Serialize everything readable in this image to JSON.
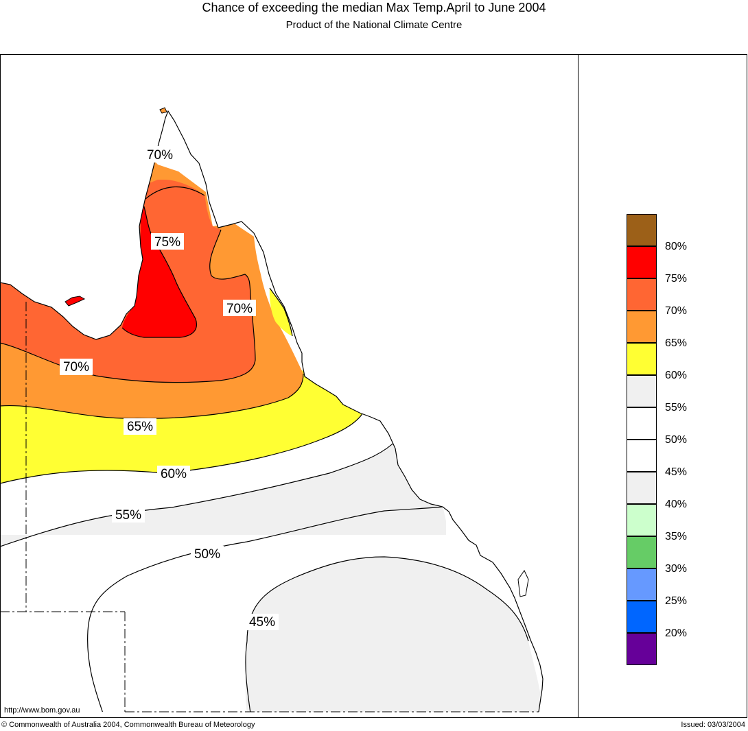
{
  "header": {
    "title": "Chance of exceeding the median Max Temp.April to June 2004",
    "subtitle": "Product of the National Climate Centre"
  },
  "map": {
    "contour_labels": [
      "70%",
      "75%",
      "70%",
      "70%",
      "65%",
      "60%",
      "55%",
      "50%",
      "45%"
    ],
    "colors": {
      "p80": "#9c6018",
      "p75": "#ff0000",
      "p70": "#ff6633",
      "p65": "#ff9933",
      "p60": "#ffff33",
      "p55": "#f0f0f0",
      "p50": "#ffffff",
      "p45": "#ffffff",
      "p40": "#f0f0f0",
      "p35": "#ccffcc",
      "p30": "#66cc66",
      "p25": "#6699ff",
      "p20": "#0066ff",
      "p15": "#660099"
    }
  },
  "legend": {
    "labels": [
      "80%",
      "75%",
      "70%",
      "65%",
      "60%",
      "55%",
      "50%",
      "45%",
      "40%",
      "35%",
      "30%",
      "25%",
      "20%"
    ],
    "swatch_colors": [
      "#9c6018",
      "#ff0000",
      "#ff6633",
      "#ff9933",
      "#ffff33",
      "#f0f0f0",
      "#ffffff",
      "#ffffff",
      "#f0f0f0",
      "#ccffcc",
      "#66cc66",
      "#6699ff",
      "#0066ff",
      "#660099"
    ]
  },
  "footer": {
    "url": "http://www.bom.gov.au",
    "copyright": "© Commonwealth of Australia 2004, Commonwealth Bureau of Meteorology",
    "issued": "Issued: 03/03/2004"
  }
}
